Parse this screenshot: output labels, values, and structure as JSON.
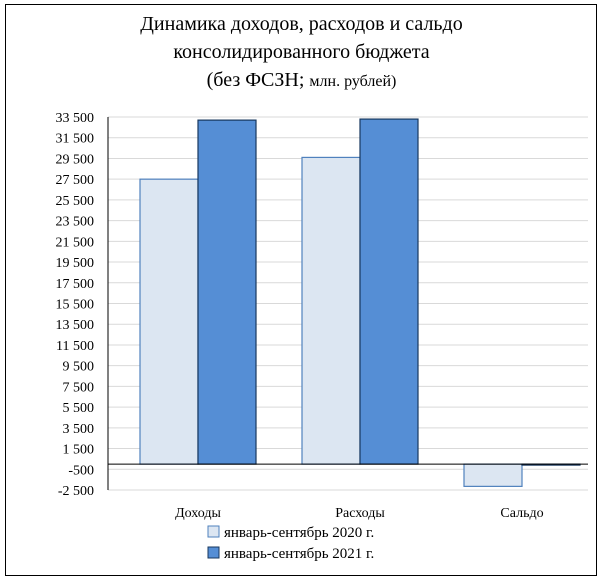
{
  "chart_data": {
    "type": "bar",
    "title_lines": [
      "Динамика доходов, расходов и сальдо",
      "консолидированного бюджета"
    ],
    "subtitle_main": "(без ФСЗН; ",
    "subtitle_small": "млн. рублей)",
    "categories": [
      "Доходы",
      "Расходы",
      "Сальдо"
    ],
    "series": [
      {
        "name": "январь-сентябрь 2020 г.",
        "values": [
          27500,
          29600,
          -2150
        ],
        "color": "#dce6f2",
        "stroke": "#4f81bd"
      },
      {
        "name": "январь-сентябрь 2021 г.",
        "values": [
          33200,
          33300,
          -60
        ],
        "color": "#558ed5",
        "stroke": "#17375e"
      }
    ],
    "ylim": [
      -2500,
      33500
    ],
    "yticks": [
      "33 500",
      "31 500",
      "29 500",
      "27 500",
      "25 500",
      "23 500",
      "21 500",
      "19 500",
      "17 500",
      "15 500",
      "13 500",
      "11 500",
      "9 500",
      "7 500",
      "5 500",
      "3 500",
      "1 500",
      "-500",
      "-2 500"
    ],
    "ytick_values": [
      33500,
      31500,
      29500,
      27500,
      25500,
      23500,
      21500,
      19500,
      17500,
      15500,
      13500,
      11500,
      9500,
      7500,
      5500,
      3500,
      1500,
      -500,
      -2500
    ],
    "grid": true,
    "legend_position": "bottom"
  }
}
